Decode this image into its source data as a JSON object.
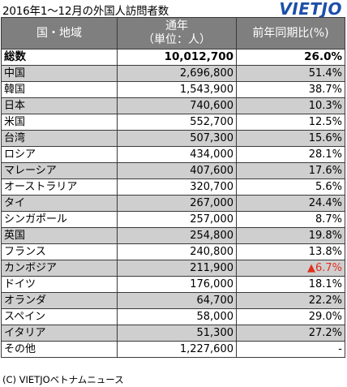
{
  "header": {
    "title": "2016年1～12月の外国人訪問者数",
    "logo_text": "VIETJO"
  },
  "table": {
    "headers": [
      "国・地域",
      "通年",
      "（単位：人）",
      "前年同期比(%)"
    ],
    "rows": [
      {
        "country": "総数",
        "visitors": "10,012,700",
        "change": "26.0%",
        "kind": "total"
      },
      {
        "country": "中国",
        "visitors": "2,696,800",
        "change": "51.4%",
        "kind": "gray"
      },
      {
        "country": "韓国",
        "visitors": "1,543,900",
        "change": "38.7%",
        "kind": "white"
      },
      {
        "country": "日本",
        "visitors": "740,600",
        "change": "10.3%",
        "kind": "gray"
      },
      {
        "country": "米国",
        "visitors": "552,700",
        "change": "12.5%",
        "kind": "white"
      },
      {
        "country": "台湾",
        "visitors": "507,300",
        "change": "15.6%",
        "kind": "gray"
      },
      {
        "country": "ロシア",
        "visitors": "434,000",
        "change": "28.1%",
        "kind": "white"
      },
      {
        "country": "マレーシア",
        "visitors": "407,600",
        "change": "17.6%",
        "kind": "gray"
      },
      {
        "country": "オーストラリア",
        "visitors": "320,700",
        "change": "5.6%",
        "kind": "white"
      },
      {
        "country": "タイ",
        "visitors": "267,000",
        "change": "24.4%",
        "kind": "gray"
      },
      {
        "country": "シンガポール",
        "visitors": "257,000",
        "change": "8.7%",
        "kind": "white"
      },
      {
        "country": "英国",
        "visitors": "254,800",
        "change": "19.8%",
        "kind": "gray"
      },
      {
        "country": "フランス",
        "visitors": "240,800",
        "change": "13.8%",
        "kind": "white"
      },
      {
        "country": "カンボジア",
        "visitors": "211,900",
        "change": "▲6.7%",
        "kind": "gray",
        "negative": true
      },
      {
        "country": "ドイツ",
        "visitors": "176,000",
        "change": "18.1%",
        "kind": "white"
      },
      {
        "country": "オランダ",
        "visitors": "64,700",
        "change": "22.2%",
        "kind": "gray"
      },
      {
        "country": "スペイン",
        "visitors": "58,000",
        "change": "29.0%",
        "kind": "white"
      },
      {
        "country": "イタリア",
        "visitors": "51,300",
        "change": "27.2%",
        "kind": "gray"
      },
      {
        "country": "その他",
        "visitors": "1,227,600",
        "change": "-",
        "kind": "white"
      }
    ]
  },
  "footer": {
    "credit": "(C) VIETJOベトナムニュース"
  },
  "colors": {
    "header_bg": "#7f7f7f",
    "row_gray": "#cfcfcf",
    "negative": "#e0301e",
    "logo": "#1d4fa8"
  }
}
